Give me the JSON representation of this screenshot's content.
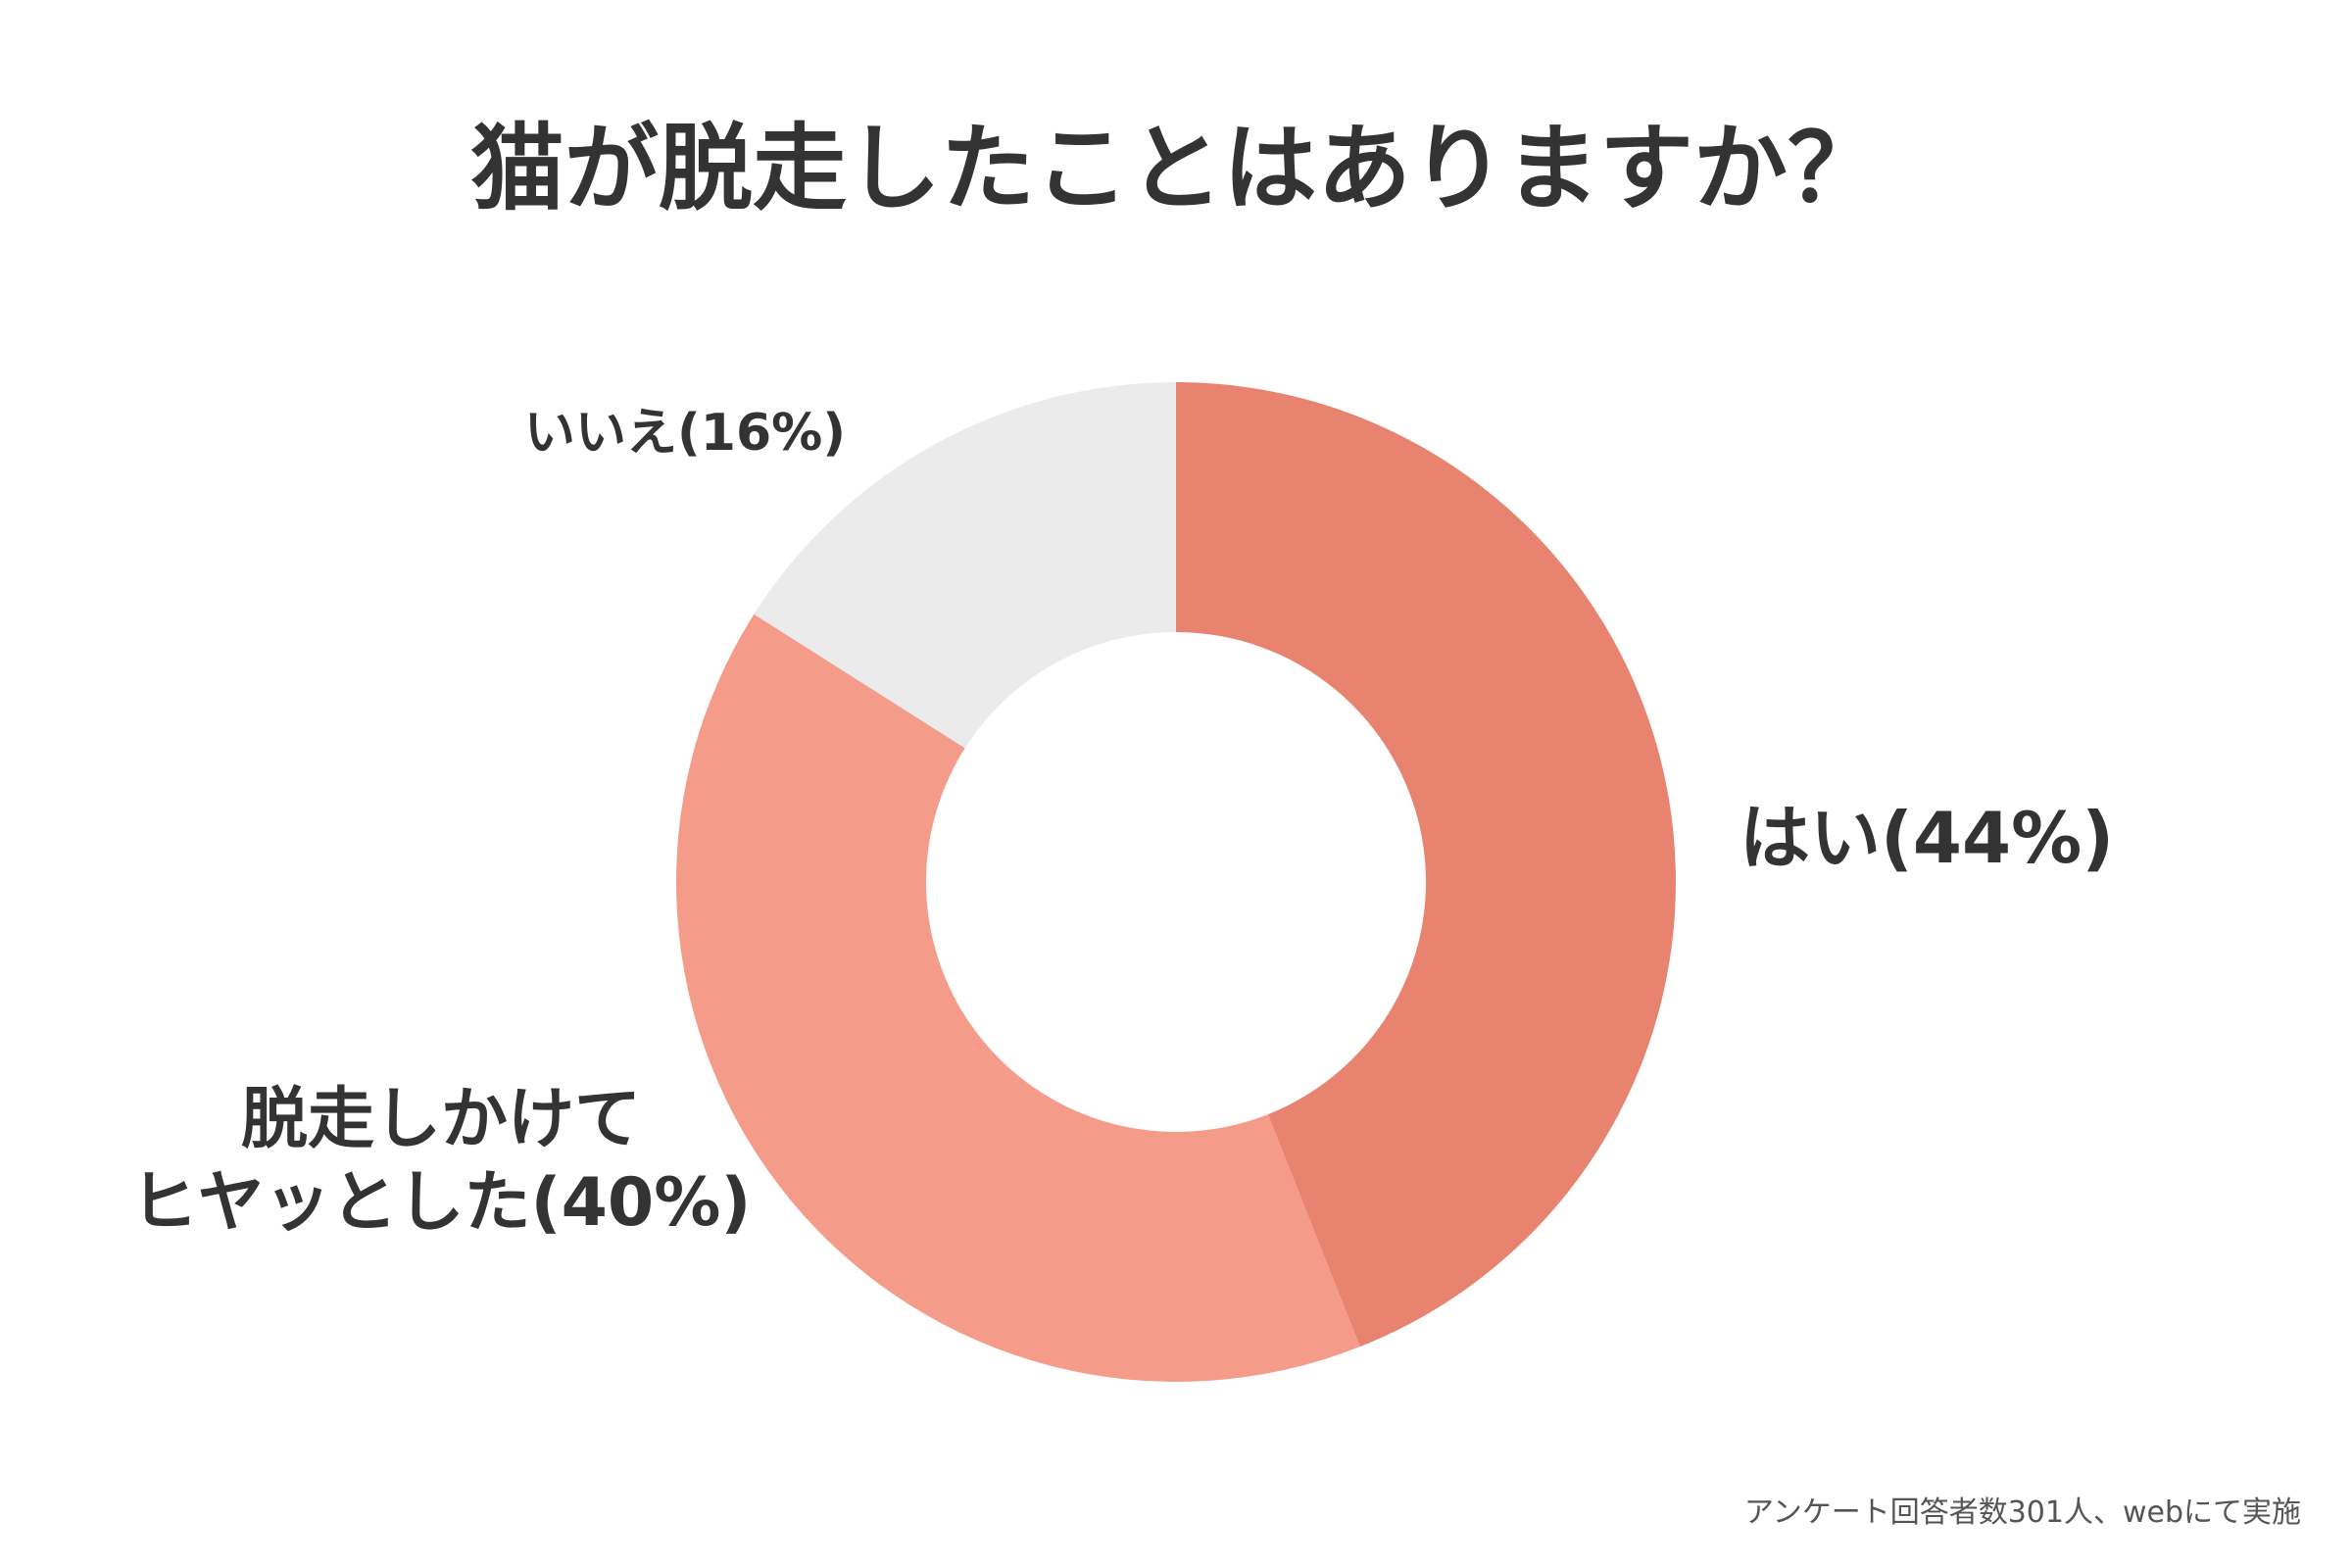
{
  "chart_data": {
    "type": "pie",
    "title": "猫が脱走したことはありますか？",
    "slices": [
      {
        "label": "はい",
        "value": 44,
        "display": "はい(44%)",
        "color": "#E8836F"
      },
      {
        "label": "脱走しかけてヒヤッとした",
        "value": 40,
        "display_line1": "脱走しかけて",
        "display_line2": "ヒヤッとした(40%)",
        "color": "#F49C89"
      },
      {
        "label": "いいえ",
        "value": 16,
        "display": "いいえ(16%)",
        "color": "#EBEBEB"
      }
    ],
    "unit": "%",
    "donut": true
  },
  "source_note": "アンケート回答者数301人、webにて実施"
}
